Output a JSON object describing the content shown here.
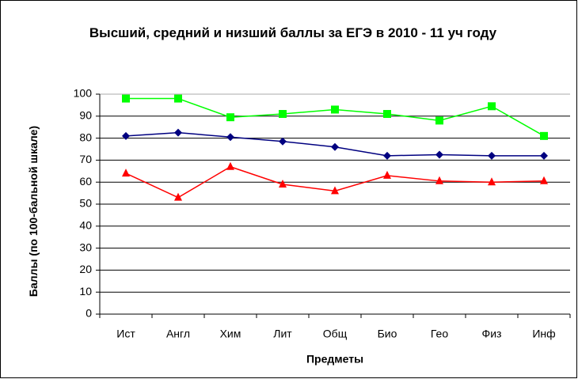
{
  "chart_data": {
    "type": "line",
    "title": "Высший, средний и низший баллы за ЕГЭ в 2010 - 11 уч году",
    "xlabel": "Предметы",
    "ylabel": "Баллы (по 100-бальной шкале)",
    "categories": [
      "Ист",
      "Англ",
      "Хим",
      "Лит",
      "Общ",
      "Био",
      "Гео",
      "Физ",
      "Инф"
    ],
    "series": [
      {
        "color": "#00ff00",
        "marker": "square",
        "values": [
          98,
          98,
          89.5,
          91,
          93,
          91,
          88,
          94.5,
          81
        ]
      },
      {
        "color": "#000080",
        "marker": "diamond",
        "values": [
          81,
          82.5,
          80.5,
          78.5,
          76,
          72,
          72.5,
          72,
          72
        ]
      },
      {
        "color": "#ff0000",
        "marker": "triangle",
        "values": [
          64,
          53,
          67,
          59,
          56,
          63,
          60.5,
          60,
          60.5
        ]
      }
    ],
    "ylim": [
      0,
      100
    ],
    "yticks": [
      0,
      10,
      20,
      30,
      40,
      50,
      60,
      70,
      80,
      90,
      100
    ],
    "grid": true
  }
}
